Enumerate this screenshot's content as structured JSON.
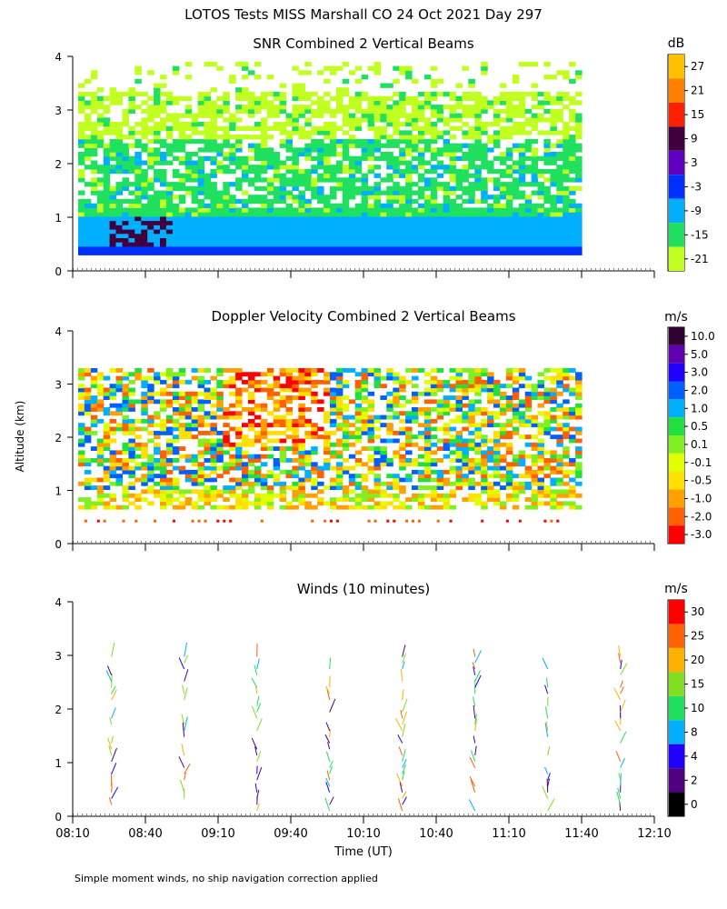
{
  "figure": {
    "title": "LOTOS Tests MISS Marshall CO  24 Oct 2021 Day 297",
    "ylabel": "Altitude (km)",
    "xlabel": "Time (UT)",
    "footnote": "Simple moment winds, no ship navigation correction applied"
  },
  "chart_data": [
    {
      "type": "heatmap",
      "title": "SNR Combined 2 Vertical Beams",
      "ylabel": "Altitude (km)",
      "x_ticks": [
        "08:10",
        "08:40",
        "09:10",
        "09:40",
        "10:10",
        "10:40",
        "11:10",
        "11:40",
        "12:10"
      ],
      "y_ticks": [
        "0",
        "1",
        "2",
        "3",
        "4"
      ],
      "ylim": [
        0,
        4
      ],
      "colorbar": {
        "unit": "dB",
        "labels": [
          "27",
          "21",
          "15",
          "9",
          "3",
          "-3",
          "-9",
          "-15",
          "-21"
        ],
        "colors": [
          "#ffc000",
          "#ff8000",
          "#ff2000",
          "#400040",
          "#6000c0",
          "#0030ff",
          "#00b0ff",
          "#20e060",
          "#c0ff20"
        ]
      },
      "data_extent": {
        "alt_min_km": 0.3,
        "alt_max_km": 3.9
      },
      "layers": [
        {
          "alt_km": [
            0.3,
            0.45
          ],
          "level": "-3"
        },
        {
          "alt_km": [
            0.45,
            1.0
          ],
          "level": "-9"
        },
        {
          "alt_km": [
            1.0,
            2.4
          ],
          "level": "-15"
        },
        {
          "alt_km": [
            2.4,
            3.3
          ],
          "level": "-21"
        }
      ]
    },
    {
      "type": "heatmap",
      "title": "Doppler Velocity Combined 2 Vertical Beams",
      "ylabel": "Altitude (km)",
      "x_ticks": [
        "08:10",
        "08:40",
        "09:10",
        "09:40",
        "10:10",
        "10:40",
        "11:10",
        "11:40",
        "12:10"
      ],
      "y_ticks": [
        "0",
        "1",
        "2",
        "3",
        "4"
      ],
      "ylim": [
        0,
        4
      ],
      "colorbar": {
        "unit": "m/s",
        "labels": [
          "10.0",
          "5.0",
          "3.0",
          "2.0",
          "1.0",
          "0.5",
          "0.1",
          "-0.1",
          "-0.5",
          "-1.0",
          "-2.0",
          "-3.0"
        ],
        "colors": [
          "#300030",
          "#6000b0",
          "#2000ff",
          "#0060ff",
          "#00b0ff",
          "#20e040",
          "#80f020",
          "#e0ff00",
          "#ffe000",
          "#ffa000",
          "#ff6000",
          "#ff0000"
        ]
      },
      "data_extent": {
        "alt_min_km": 0.4,
        "alt_max_km": 3.3
      }
    },
    {
      "type": "scatter",
      "title": "Winds (10 minutes)",
      "ylabel": "Altitude (km)",
      "x_ticks": [
        "08:10",
        "08:40",
        "09:10",
        "09:40",
        "10:10",
        "10:40",
        "11:10",
        "11:40",
        "12:10"
      ],
      "y_ticks": [
        "0",
        "1",
        "2",
        "3",
        "4"
      ],
      "ylim": [
        0,
        4
      ],
      "colorbar": {
        "unit": "m/s",
        "labels": [
          "30",
          "25",
          "20",
          "15",
          "10",
          "8",
          "4",
          "2",
          "0"
        ],
        "colors": [
          "#ff0000",
          "#ff6000",
          "#ffb000",
          "#80e020",
          "#20e060",
          "#00b0ff",
          "#2000ff",
          "#500080",
          "#000000"
        ]
      },
      "profile_times": [
        "08:26",
        "08:56",
        "09:26",
        "09:56",
        "10:26",
        "10:56",
        "11:26",
        "11:56"
      ]
    }
  ]
}
